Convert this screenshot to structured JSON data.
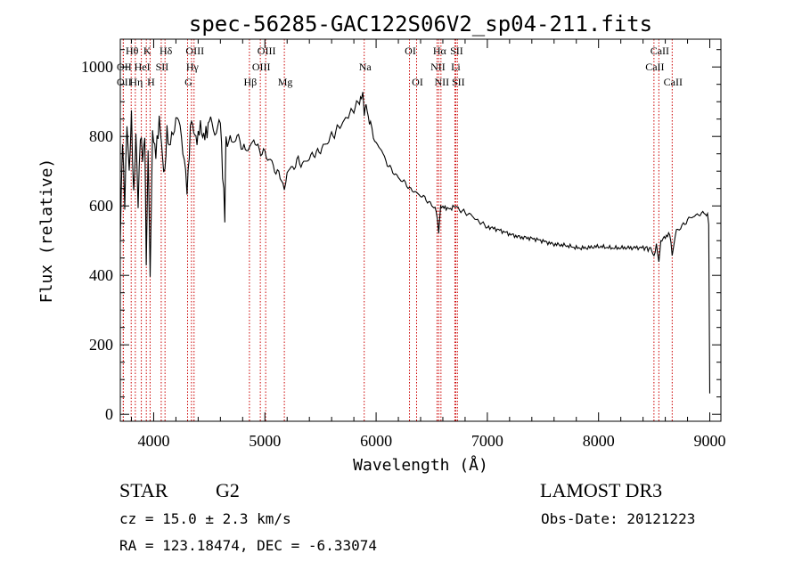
{
  "chart_data": {
    "type": "line",
    "title": "spec-56285-GAC122S06V2_sp04-211.fits",
    "xlabel": "Wavelength (Å)",
    "ylabel": "Flux (relative)",
    "xlim": [
      3700,
      9100
    ],
    "ylim": [
      -20,
      1080
    ],
    "x_ticks": [
      4000,
      5000,
      6000,
      7000,
      8000,
      9000
    ],
    "x_tick_labels": [
      "4000",
      "5000",
      "6000",
      "7000",
      "8000",
      "9000"
    ],
    "y_ticks": [
      0,
      200,
      400,
      600,
      800,
      1000
    ],
    "y_tick_labels": [
      "0",
      "200",
      "400",
      "600",
      "800",
      "1000"
    ],
    "series": [
      {
        "name": "flux",
        "x": [
          3700,
          3720,
          3740,
          3760,
          3780,
          3800,
          3820,
          3840,
          3860,
          3880,
          3900,
          3920,
          3933,
          3950,
          3968,
          3990,
          4020,
          4050,
          4080,
          4101,
          4120,
          4150,
          4200,
          4250,
          4300,
          4340,
          4380,
          4420,
          4460,
          4500,
          4550,
          4600,
          4640,
          4650,
          4700,
          4750,
          4800,
          4861,
          4900,
          4950,
          5000,
          5050,
          5100,
          5150,
          5175,
          5200,
          5250,
          5300,
          5350,
          5400,
          5450,
          5500,
          5550,
          5600,
          5650,
          5700,
          5750,
          5800,
          5850,
          5880,
          5893,
          5910,
          5950,
          6000,
          6050,
          6100,
          6150,
          6200,
          6250,
          6300,
          6350,
          6400,
          6450,
          6500,
          6540,
          6563,
          6580,
          6620,
          6660,
          6700,
          6750,
          6800,
          6850,
          6900,
          6950,
          7000,
          7100,
          7200,
          7300,
          7400,
          7500,
          7600,
          7700,
          7800,
          7900,
          8000,
          8100,
          8200,
          8300,
          8400,
          8480,
          8498,
          8520,
          8542,
          8560,
          8600,
          8640,
          8662,
          8700,
          8750,
          8800,
          8850,
          8900,
          8950,
          8980,
          8990,
          9000
        ],
        "values": [
          500,
          780,
          620,
          830,
          700,
          850,
          640,
          800,
          600,
          810,
          740,
          800,
          420,
          780,
          390,
          820,
          740,
          860,
          730,
          700,
          820,
          760,
          860,
          810,
          640,
          860,
          780,
          830,
          790,
          850,
          810,
          840,
          560,
          800,
          780,
          800,
          770,
          760,
          790,
          760,
          750,
          730,
          700,
          680,
          640,
          700,
          710,
          730,
          720,
          740,
          750,
          760,
          780,
          800,
          820,
          840,
          860,
          880,
          900,
          920,
          860,
          890,
          830,
          780,
          760,
          720,
          700,
          680,
          670,
          650,
          640,
          630,
          620,
          600,
          590,
          520,
          600,
          595,
          590,
          600,
          590,
          580,
          575,
          560,
          550,
          540,
          530,
          520,
          510,
          505,
          500,
          490,
          485,
          480,
          480,
          482,
          480,
          480,
          478,
          480,
          475,
          450,
          490,
          440,
          500,
          510,
          520,
          460,
          530,
          540,
          560,
          570,
          575,
          580,
          570,
          550,
          60
        ]
      }
    ],
    "lines": [
      {
        "name": "Hθ",
        "wave": 3798,
        "row": 0
      },
      {
        "name": "OII",
        "wave": 3727,
        "row": 1
      },
      {
        "name": "OII",
        "wave": 3727,
        "row": 2
      },
      {
        "name": "Hη",
        "wave": 3835,
        "row": 2
      },
      {
        "name": "HeI",
        "wave": 3889,
        "row": 1
      },
      {
        "name": "K",
        "wave": 3934,
        "row": 0
      },
      {
        "name": "SII",
        "wave": 4068,
        "row": 1
      },
      {
        "name": "H",
        "wave": 3968,
        "row": 2
      },
      {
        "name": "Hδ",
        "wave": 4102,
        "row": 0
      },
      {
        "name": "OIII",
        "wave": 4363,
        "row": 0
      },
      {
        "name": "Hγ",
        "wave": 4340,
        "row": 1
      },
      {
        "name": "G",
        "wave": 4305,
        "row": 2
      },
      {
        "name": "Hβ",
        "wave": 4861,
        "row": 2
      },
      {
        "name": "OIII",
        "wave": 4959,
        "row": 1
      },
      {
        "name": "OIII",
        "wave": 5007,
        "row": 0
      },
      {
        "name": "Mg",
        "wave": 5175,
        "row": 2
      },
      {
        "name": "Na",
        "wave": 5893,
        "row": 1
      },
      {
        "name": "OI",
        "wave": 6300,
        "row": 0
      },
      {
        "name": "OI",
        "wave": 6364,
        "row": 2
      },
      {
        "name": "Hα",
        "wave": 6563,
        "row": 0
      },
      {
        "name": "NII",
        "wave": 6548,
        "row": 1
      },
      {
        "name": "NII",
        "wave": 6583,
        "row": 2
      },
      {
        "name": "SII",
        "wave": 6716,
        "row": 0
      },
      {
        "name": "Li",
        "wave": 6708,
        "row": 1
      },
      {
        "name": "SII",
        "wave": 6731,
        "row": 2
      },
      {
        "name": "CaII",
        "wave": 8542,
        "row": 0
      },
      {
        "name": "CaII",
        "wave": 8498,
        "row": 1
      },
      {
        "name": "CaII",
        "wave": 8662,
        "row": 2
      }
    ]
  },
  "info": {
    "object_class": "STAR",
    "subclass": "G2",
    "survey": "LAMOST DR3",
    "cz_text": "cz = 15.0 ± 2.3 km/s",
    "obs_date_text": "Obs-Date: 20121223",
    "radec_text": "RA = 123.18474, DEC =  -6.33074"
  },
  "colors": {
    "spectrum": "#000000",
    "line_marker": "#cc0000",
    "axis": "#000000"
  }
}
